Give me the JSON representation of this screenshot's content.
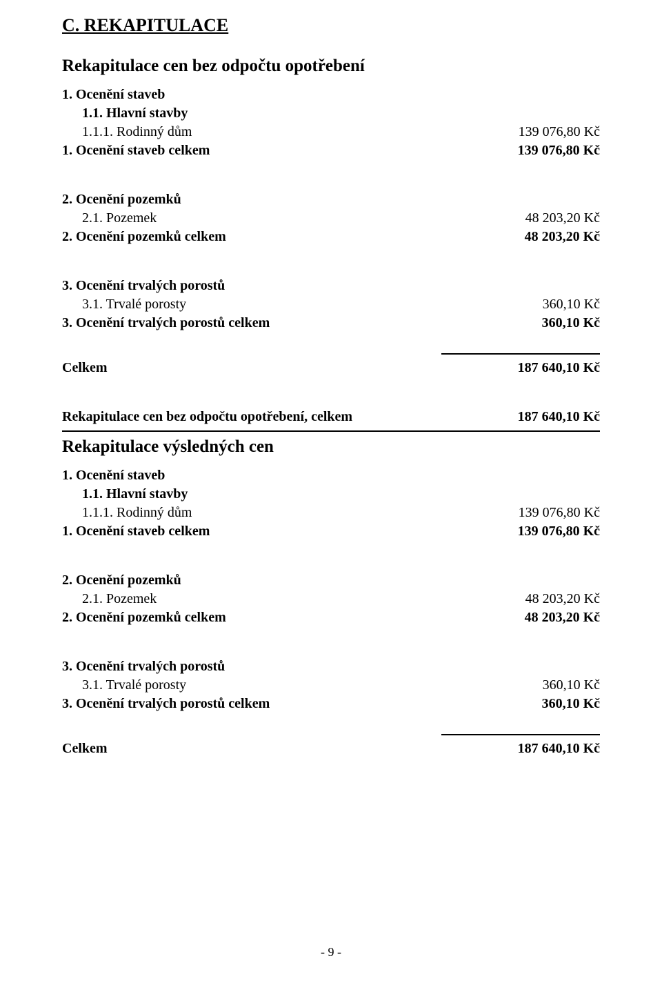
{
  "headings": {
    "main": "C. REKAPITULACE",
    "recap_no_wear": "Rekapitulace cen bez odpočtu opotřebení",
    "recap_no_wear_total_label": "Rekapitulace cen bez odpočtu opotřebení, celkem",
    "recap_final": "Rekapitulace výsledných cen"
  },
  "block1": {
    "sec1_label": "1. Ocenění staveb",
    "sec1_1_label": "1.1. Hlavní stavby",
    "sec1_1_1_label": "1.1.1. Rodinný dům",
    "sec1_1_1_value": "139 076,80 Kč",
    "sec1_total_label": "1. Ocenění staveb celkem",
    "sec1_total_value": "139 076,80 Kč",
    "sec2_label": "2. Ocenění pozemků",
    "sec2_1_label": "2.1. Pozemek",
    "sec2_1_value": "48 203,20 Kč",
    "sec2_total_label": "2. Ocenění pozemků celkem",
    "sec2_total_value": "48 203,20 Kč",
    "sec3_label": "3. Ocenění trvalých porostů",
    "sec3_1_label": "3.1. Trvalé porosty",
    "sec3_1_value": "360,10 Kč",
    "sec3_total_label": "3. Ocenění trvalých porostů celkem",
    "sec3_total_value": "360,10 Kč",
    "grand_label": "Celkem",
    "grand_value": "187 640,10 Kč"
  },
  "recap_total_value": "187 640,10 Kč",
  "block2": {
    "sec1_label": "1. Ocenění staveb",
    "sec1_1_label": "1.1. Hlavní stavby",
    "sec1_1_1_label": "1.1.1. Rodinný dům",
    "sec1_1_1_value": "139 076,80 Kč",
    "sec1_total_label": "1. Ocenění staveb celkem",
    "sec1_total_value": "139 076,80 Kč",
    "sec2_label": "2. Ocenění pozemků",
    "sec2_1_label": "2.1. Pozemek",
    "sec2_1_value": "48 203,20 Kč",
    "sec2_total_label": "2. Ocenění pozemků celkem",
    "sec2_total_value": "48 203,20 Kč",
    "sec3_label": "3. Ocenění trvalých porostů",
    "sec3_1_label": "3.1. Trvalé porosty",
    "sec3_1_value": "360,10 Kč",
    "sec3_total_label": "3. Ocenění trvalých porostů celkem",
    "sec3_total_value": "360,10 Kč",
    "grand_label": "Celkem",
    "grand_value": "187 640,10 Kč"
  },
  "footer": "- 9 -"
}
